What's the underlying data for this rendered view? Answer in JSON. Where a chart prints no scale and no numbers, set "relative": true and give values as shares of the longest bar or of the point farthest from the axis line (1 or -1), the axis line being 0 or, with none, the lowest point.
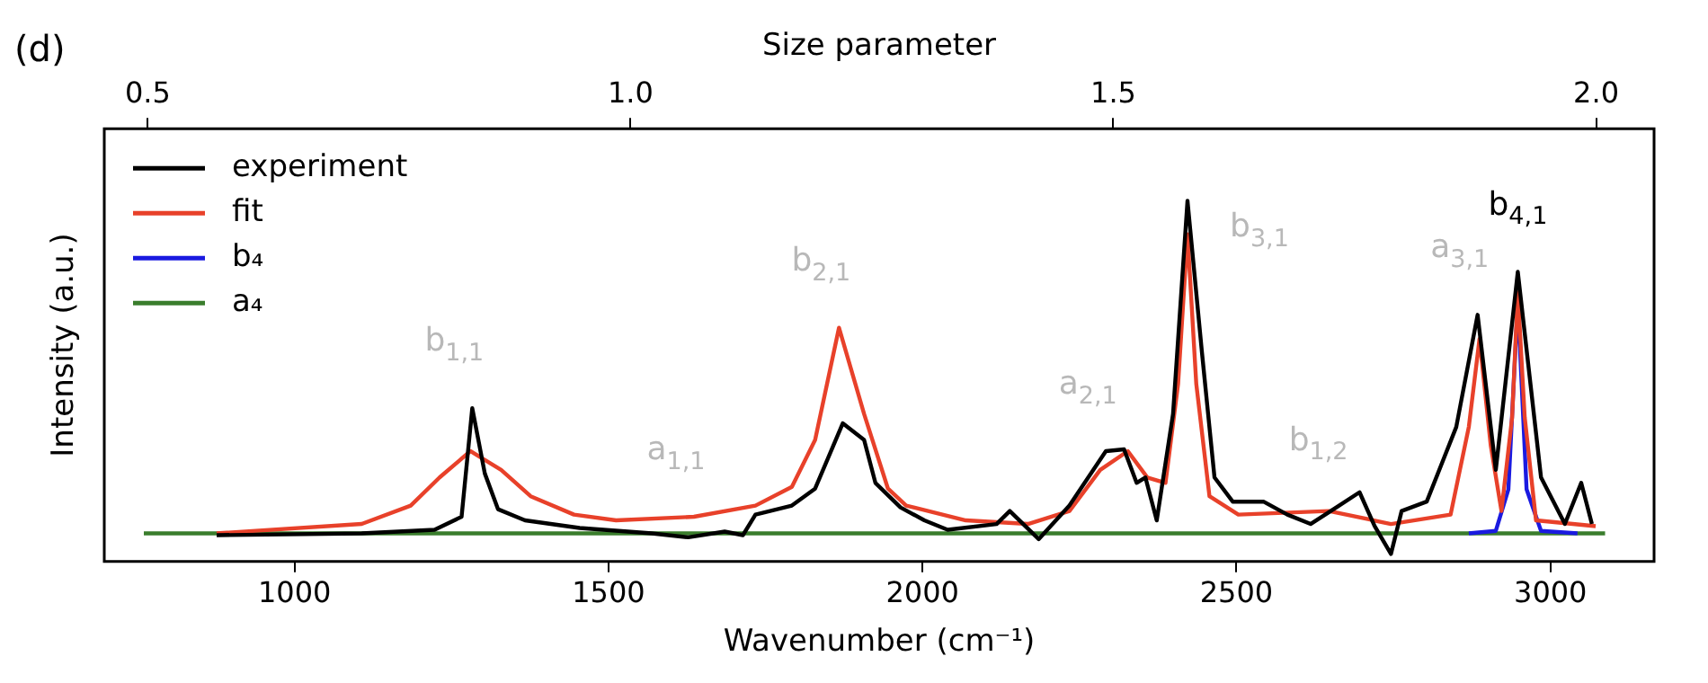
{
  "chart_data": {
    "type": "line",
    "relative": true,
    "xlabel": "Wavenumber (cm⁻¹)",
    "x2label": "Size parameter",
    "xlim": [
      697,
      3165
    ],
    "xticks": [
      1000,
      1500,
      2000,
      2500,
      3000
    ],
    "x2lim": [
      0.455,
      2.06
    ],
    "x2ticks": [
      0.5,
      {
        "value": 1,
        "label": "1.0"
      },
      1.5,
      {
        "value": 2,
        "label": "2.0"
      }
    ],
    "ylabel": "Intensity (a.u.)",
    "legend": "top left",
    "grid": false,
    "marker": "none",
    "line_style": "solid",
    "series": [
      {
        "name": "experiment",
        "color": "#000000",
        "x": [
          876,
          1107,
          1223,
          1266,
          1283,
          1303,
          1324,
          1367,
          1454,
          1569,
          1627,
          1685,
          1714,
          1734,
          1792,
          1829,
          1873,
          1907,
          1925,
          1965,
          2003,
          2040,
          2118,
          2139,
          2185,
          2234,
          2292,
          2321,
          2341,
          2355,
          2373,
          2399,
          2422,
          2445,
          2465,
          2494,
          2543,
          2581,
          2618,
          2659,
          2696,
          2720,
          2746,
          2763,
          2803,
          2850,
          2884,
          2913,
          2948,
          2985,
          3023,
          3049,
          3066
        ],
        "values": [
          0.073,
          0.078,
          0.088,
          0.124,
          0.425,
          0.244,
          0.145,
          0.114,
          0.093,
          0.078,
          0.067,
          0.083,
          0.073,
          0.13,
          0.155,
          0.202,
          0.383,
          0.337,
          0.218,
          0.15,
          0.114,
          0.088,
          0.104,
          0.14,
          0.062,
          0.155,
          0.306,
          0.311,
          0.218,
          0.233,
          0.114,
          0.409,
          1,
          0.58,
          0.233,
          0.166,
          0.166,
          0.13,
          0.104,
          0.15,
          0.192,
          0.098,
          0.021,
          0.14,
          0.166,
          0.373,
          0.684,
          0.254,
          0.803,
          0.233,
          0.104,
          0.218,
          0.104
        ]
      },
      {
        "name": "fit",
        "color": "#e8412a",
        "x": [
          876,
          1107,
          1185,
          1231,
          1280,
          1329,
          1376,
          1445,
          1512,
          1636,
          1734,
          1792,
          1829,
          1867,
          1907,
          1945,
          1974,
          2069,
          2168,
          2234,
          2283,
          2327,
          2358,
          2387,
          2407,
          2422,
          2436,
          2457,
          2503,
          2647,
          2746,
          2841,
          2870,
          2887,
          2905,
          2922,
          2939,
          2948,
          2959,
          2977,
          3072
        ],
        "values": [
          0.078,
          0.104,
          0.155,
          0.233,
          0.306,
          0.254,
          0.181,
          0.13,
          0.114,
          0.124,
          0.155,
          0.207,
          0.337,
          0.648,
          0.409,
          0.202,
          0.155,
          0.114,
          0.104,
          0.14,
          0.254,
          0.306,
          0.233,
          0.218,
          0.492,
          0.907,
          0.492,
          0.181,
          0.13,
          0.14,
          0.104,
          0.13,
          0.373,
          0.617,
          0.321,
          0.14,
          0.4,
          0.746,
          0.4,
          0.114,
          0.098
        ]
      },
      {
        "name": "b₄",
        "color": "#1a1ae0",
        "x": [
          2870,
          2913,
          2933,
          2948,
          2962,
          2985,
          3043
        ],
        "values": [
          0.078,
          0.085,
          0.2,
          0.72,
          0.2,
          0.085,
          0.078
        ]
      },
      {
        "name": "a₄",
        "color": "#3a7d2c",
        "x": [
          760,
          3087
        ],
        "values": [
          0.078,
          0.078
        ]
      }
    ],
    "annotations": [
      "(d)",
      {
        "text": "b$_{1,1}$",
        "x": 1283,
        "y": 0.425
      },
      {
        "text": "a$_{1,1}$",
        "x": 1636,
        "y": 0.124
      },
      {
        "text": "b$_{2,1}$",
        "x": 1867,
        "y": 0.648
      },
      {
        "text": "a$_{2,1}$",
        "x": 2292,
        "y": 0.306
      },
      {
        "text": "b$_{3,1}$",
        "x": 2422,
        "y": 1
      },
      {
        "text": "b$_{1,2}$",
        "x": 2659,
        "y": 0.15
      },
      {
        "text": "a$_{3,1}$",
        "x": 2884,
        "y": 0.684
      },
      {
        "text": "b$_{4,1}$",
        "x": 2948,
        "y": 0.803
      }
    ]
  }
}
